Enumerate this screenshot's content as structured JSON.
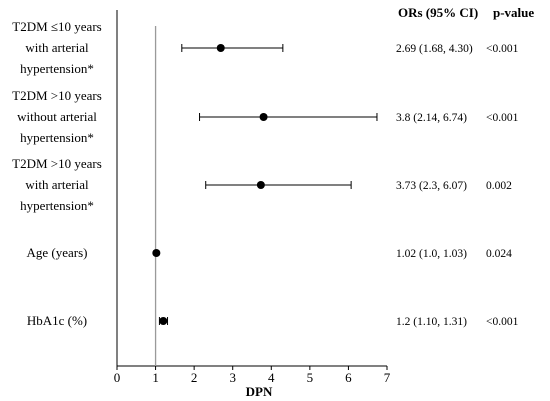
{
  "chart_data": {
    "type": "forest",
    "xlabel": "DPN",
    "xlim": [
      0,
      7
    ],
    "xticks": [
      0,
      1,
      2,
      3,
      4,
      5,
      6,
      7
    ],
    "reference_line": 1,
    "columns": {
      "or_header": "ORs (95% CI)",
      "p_header": "p-value"
    },
    "rows": [
      {
        "label_lines": [
          "T2DM ≤10 years",
          "with arterial",
          "hypertension*"
        ],
        "or": 2.69,
        "ci_low": 1.68,
        "ci_high": 4.3,
        "or_text": "2.69 (1.68, 4.30)",
        "p_text": "<0.001"
      },
      {
        "label_lines": [
          "T2DM >10 years",
          "without arterial",
          "hypertension*"
        ],
        "or": 3.8,
        "ci_low": 2.14,
        "ci_high": 6.74,
        "or_text": "3.8 (2.14, 6.74)",
        "p_text": "<0.001"
      },
      {
        "label_lines": [
          "T2DM >10 years",
          "with arterial",
          "hypertension*"
        ],
        "or": 3.73,
        "ci_low": 2.3,
        "ci_high": 6.07,
        "or_text": "3.73 (2.3, 6.07)",
        "p_text": "0.002"
      },
      {
        "label_lines": [
          "Age (years)"
        ],
        "or": 1.02,
        "ci_low": 1.0,
        "ci_high": 1.03,
        "or_text": "1.02 (1.0, 1.03)",
        "p_text": "0.024"
      },
      {
        "label_lines": [
          "HbA1c (%)"
        ],
        "or": 1.2,
        "ci_low": 1.1,
        "ci_high": 1.31,
        "or_text": "1.2 (1.10, 1.31)",
        "p_text": "<0.001"
      }
    ]
  }
}
